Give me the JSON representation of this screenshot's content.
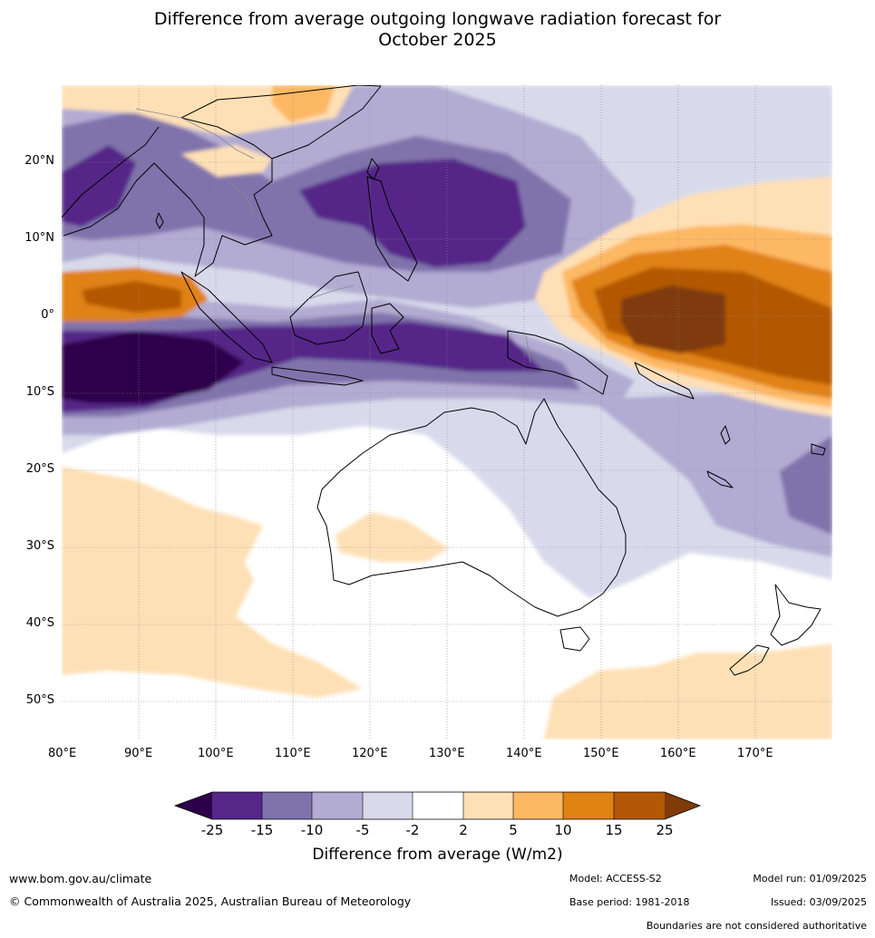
{
  "title": {
    "line1": "Difference from average outgoing longwave radiation forecast for",
    "line2": "October 2025"
  },
  "map": {
    "lat_labels": [
      "20°N",
      "10°N",
      "0°",
      "10°S",
      "20°S",
      "30°S",
      "40°S",
      "50°S"
    ],
    "lon_labels": [
      "80°E",
      "90°E",
      "100°E",
      "110°E",
      "120°E",
      "130°E",
      "140°E",
      "150°E",
      "160°E",
      "170°E"
    ],
    "extent": {
      "lon": [
        80,
        180
      ],
      "lat": [
        -55,
        30
      ]
    }
  },
  "colorbar": {
    "ticks": [
      "-25",
      "-15",
      "-10",
      "-5",
      "-2",
      "2",
      "5",
      "10",
      "15",
      "25"
    ],
    "colors": {
      "lt_-25": "#2d004b",
      "-25_-15": "#542788",
      "-15_-10": "#8073ac",
      "-10_-5": "#b2abd2",
      "-5_-2": "#d8daeb",
      "-2_2": "#ffffff",
      "2_5": "#fee0b6",
      "5_10": "#fdb863",
      "10_15": "#e08214",
      "15_25": "#b35806",
      "gt_25": "#7f3b08"
    },
    "label": "Difference from average (W/m2)"
  },
  "footer": {
    "website": "www.bom.gov.au/climate",
    "copyright": "© Commonwealth of Australia 2025, Australian Bureau of Meteorology",
    "model": "Model: ACCESS-S2",
    "base_period": "Base period: 1981-2018",
    "model_run": "Model run: 01/09/2025",
    "issued": "Issued: 03/09/2025",
    "disclaimer": "Boundaries are not considered authoritative"
  }
}
